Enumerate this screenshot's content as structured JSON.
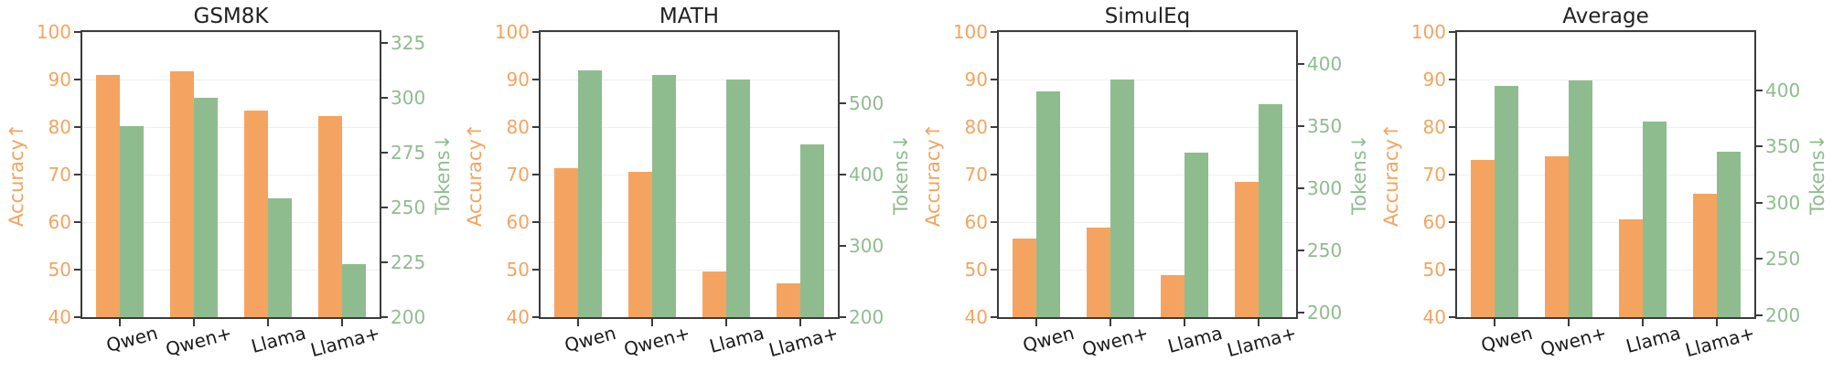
{
  "colors": {
    "accuracy": "#F4A460",
    "tokens": "#8FBC8F",
    "spine": "#3B3B3B",
    "grid": "#EFEFEF",
    "title_text": "#222222",
    "xtick_text": "#1A1A1A"
  },
  "chart_data": [
    {
      "type": "bar",
      "title": "GSM8K",
      "categories": [
        "Qwen",
        "Qwen+",
        "Llama",
        "Llama+"
      ],
      "left_axis": {
        "label": "Accuracy↑",
        "min": 40,
        "max": 100,
        "ticks": [
          40,
          50,
          60,
          70,
          80,
          90,
          100
        ]
      },
      "right_axis": {
        "label": "Tokens↓",
        "min": 200,
        "max": 330,
        "ticks": [
          200,
          225,
          250,
          275,
          300,
          325
        ]
      },
      "series": [
        {
          "name": "Accuracy",
          "axis": "left",
          "values": [
            91.0,
            91.8,
            83.4,
            82.4
          ]
        },
        {
          "name": "Tokens",
          "axis": "right",
          "values": [
            287,
            300,
            254,
            224
          ]
        }
      ],
      "grid": "horizontal-faint",
      "legend": "none"
    },
    {
      "type": "bar",
      "title": "MATH",
      "categories": [
        "Qwen",
        "Qwen+",
        "Llama",
        "Llama+"
      ],
      "left_axis": {
        "label": "Accuracy↑",
        "min": 40,
        "max": 100,
        "ticks": [
          40,
          50,
          60,
          70,
          80,
          90,
          100
        ]
      },
      "right_axis": {
        "label": "Tokens↓",
        "min": 200,
        "max": 600,
        "ticks": [
          200,
          300,
          400,
          500
        ]
      },
      "series": [
        {
          "name": "Accuracy",
          "axis": "left",
          "values": [
            71.4,
            70.6,
            49.6,
            47.2
          ]
        },
        {
          "name": "Tokens",
          "axis": "right",
          "values": [
            546,
            540,
            533,
            442
          ]
        }
      ],
      "grid": "horizontal-faint",
      "legend": "none"
    },
    {
      "type": "bar",
      "title": "SimulEq",
      "categories": [
        "Qwen",
        "Qwen+",
        "Llama",
        "Llama+"
      ],
      "left_axis": {
        "label": "Accuracy↑",
        "min": 40,
        "max": 100,
        "ticks": [
          40,
          50,
          60,
          70,
          80,
          90,
          100
        ]
      },
      "right_axis": {
        "label": "Tokens↓",
        "min": 196,
        "max": 426,
        "ticks": [
          200,
          250,
          300,
          350,
          400
        ]
      },
      "series": [
        {
          "name": "Accuracy",
          "axis": "left",
          "values": [
            56.5,
            58.9,
            48.8,
            68.5
          ]
        },
        {
          "name": "Tokens",
          "axis": "right",
          "values": [
            378,
            388,
            329,
            368
          ]
        }
      ],
      "grid": "horizontal-faint",
      "legend": "none"
    },
    {
      "type": "bar",
      "title": "Average",
      "categories": [
        "Qwen",
        "Qwen+",
        "Llama",
        "Llama+"
      ],
      "left_axis": {
        "label": "Accuracy↑",
        "min": 40,
        "max": 100,
        "ticks": [
          40,
          50,
          60,
          70,
          80,
          90,
          100
        ]
      },
      "right_axis": {
        "label": "Tokens↓",
        "min": 198,
        "max": 452,
        "ticks": [
          200,
          250,
          300,
          350,
          400
        ]
      },
      "series": [
        {
          "name": "Accuracy",
          "axis": "left",
          "values": [
            73.0,
            73.8,
            60.6,
            66.0
          ]
        },
        {
          "name": "Tokens",
          "axis": "right",
          "values": [
            404,
            409,
            372,
            345
          ]
        }
      ],
      "grid": "horizontal-faint",
      "legend": "none"
    }
  ]
}
